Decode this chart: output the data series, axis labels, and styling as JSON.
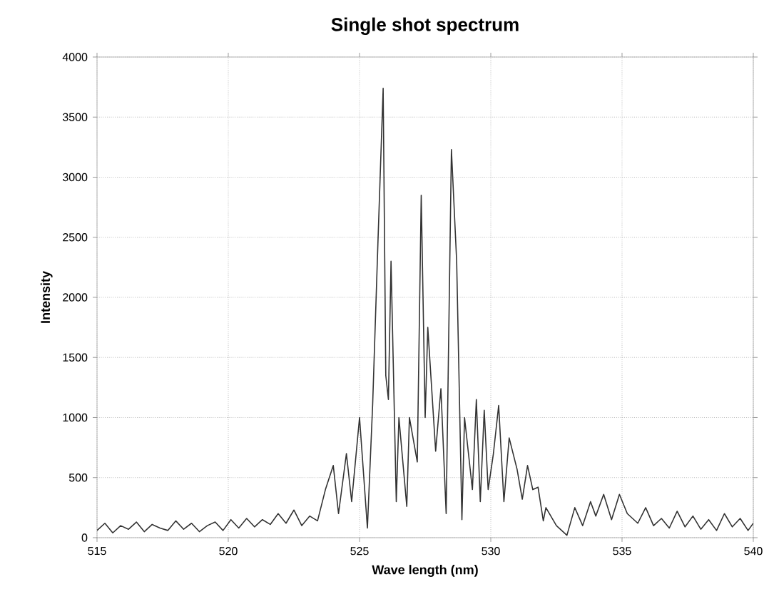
{
  "chart_data": {
    "type": "line",
    "title": "Single shot spectrum",
    "xlabel": "Wave length (nm)",
    "ylabel": "Intensity",
    "xlim": [
      515,
      540
    ],
    "xticks": [
      515,
      520,
      525,
      530,
      535,
      540
    ],
    "ylim": [
      0,
      4000
    ],
    "yticks": [
      0,
      500,
      1000,
      1500,
      2000,
      2500,
      3000,
      3500,
      4000
    ],
    "grid": true,
    "marker": "none",
    "line_style": "solid",
    "series": [
      {
        "color": "#333333",
        "x": [
          515,
          515.3,
          515.6,
          515.9,
          516.2,
          516.5,
          516.8,
          517.1,
          517.4,
          517.7,
          518,
          518.3,
          518.6,
          518.9,
          519.2,
          519.5,
          519.8,
          520.1,
          520.4,
          520.7,
          521,
          521.3,
          521.6,
          521.9,
          522.2,
          522.5,
          522.8,
          523.1,
          523.4,
          523.7,
          524,
          524.2,
          524.5,
          524.7,
          525,
          525.3,
          525.5,
          525.7,
          525.9,
          526,
          526.1,
          526.2,
          526.4,
          526.5,
          526.8,
          526.9,
          527.2,
          527.35,
          527.5,
          527.6,
          527.9,
          528.1,
          528.3,
          528.5,
          528.7,
          528.9,
          529,
          529.3,
          529.45,
          529.6,
          529.75,
          529.9,
          530.1,
          530.3,
          530.5,
          530.7,
          531,
          531.2,
          531.4,
          531.6,
          531.8,
          532,
          532.1,
          532.5,
          532.9,
          533.2,
          533.5,
          533.8,
          534,
          534.3,
          534.6,
          534.9,
          535.2,
          535.6,
          535.9,
          536.2,
          536.5,
          536.8,
          537.1,
          537.4,
          537.7,
          538,
          538.3,
          538.6,
          538.9,
          539.2,
          539.5,
          539.8,
          540
        ],
        "values": [
          60,
          120,
          40,
          100,
          70,
          130,
          50,
          110,
          80,
          60,
          140,
          70,
          120,
          50,
          100,
          130,
          60,
          150,
          80,
          160,
          90,
          150,
          110,
          200,
          120,
          230,
          100,
          180,
          140,
          400,
          600,
          200,
          700,
          300,
          1000,
          80,
          1110,
          2450,
          3740,
          1350,
          1150,
          2300,
          300,
          1000,
          260,
          1000,
          630,
          2850,
          1000,
          1750,
          720,
          1240,
          200,
          3230,
          2300,
          150,
          1000,
          400,
          1150,
          300,
          1060,
          400,
          700,
          1100,
          300,
          830,
          570,
          320,
          600,
          400,
          420,
          140,
          250,
          100,
          20,
          250,
          100,
          300,
          180,
          360,
          150,
          360,
          200,
          120,
          250,
          100,
          160,
          80,
          220,
          90,
          180,
          70,
          150,
          60,
          200,
          90,
          160,
          60,
          120
        ]
      }
    ]
  }
}
